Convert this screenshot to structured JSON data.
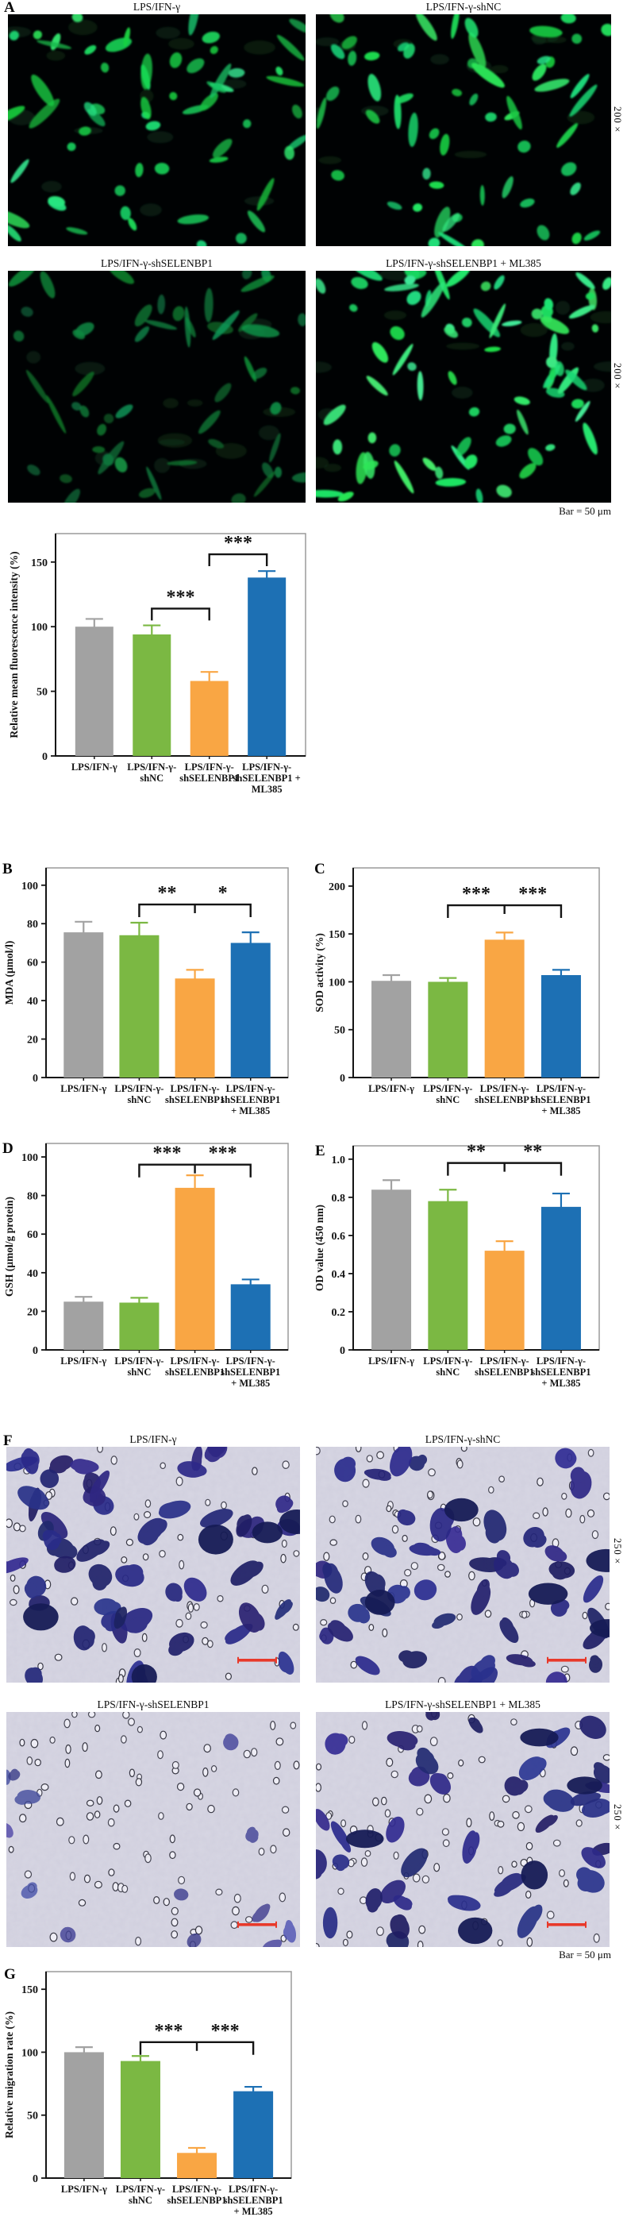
{
  "colors": {
    "bars": [
      "#a2a2a2",
      "#7bb843",
      "#f9a644",
      "#1d70b4"
    ],
    "significance": "#141414",
    "scale_bar": "#e8392a",
    "fluorescence_green": "#2bd468",
    "transwell_stain": "#2e3a92"
  },
  "panels": {
    "a": {
      "letter": "A",
      "magnification": "200×",
      "scale_note": "Bar = 50 μm",
      "images": [
        {
          "label": "LPS/IFN-γ",
          "appearance": "bright green fluorescent cells, medium density"
        },
        {
          "label": "LPS/IFN-γ-shNC",
          "appearance": "bright green fluorescent cells, medium density"
        },
        {
          "label": "LPS/IFN-γ-shSELENBP1",
          "appearance": "dim green fluorescent cells, reduced intensity"
        },
        {
          "label": "LPS/IFN-γ-shSELENBP1 + ML385",
          "appearance": "very bright green fluorescent cells, high density"
        }
      ]
    },
    "b": {
      "letter": "B"
    },
    "c": {
      "letter": "C"
    },
    "d": {
      "letter": "D"
    },
    "e": {
      "letter": "E"
    },
    "f": {
      "letter": "F",
      "magnification": "250×",
      "scale_note": "Bar = 50 μm",
      "images": [
        {
          "label": "LPS/IFN-γ",
          "appearance": "many crystal-violet stained migrated cells"
        },
        {
          "label": "LPS/IFN-γ-shNC",
          "appearance": "many crystal-violet stained migrated cells"
        },
        {
          "label": "LPS/IFN-γ-shSELENBP1",
          "appearance": "few crystal-violet stained migrated cells"
        },
        {
          "label": "LPS/IFN-γ-shSELENBP1 + ML385",
          "appearance": "moderate number of stained migrated cells"
        }
      ]
    },
    "g": {
      "letter": "G"
    }
  },
  "chart_data": [
    {
      "panel": "A",
      "type": "bar",
      "ylabel": "Relative mean fluorescence intensity (%)",
      "categories": [
        "LPS/IFN-γ",
        "LPS/IFN-γ-\nshNC",
        "LPS/IFN-γ-\nshSELENBP1",
        "LPS/IFN-γ-\nshSELENBP1 +\nML385"
      ],
      "values": [
        100,
        94,
        58,
        138
      ],
      "errors": [
        6,
        7,
        7,
        5
      ],
      "yticks": [
        "0",
        "50",
        "100",
        "150"
      ],
      "ylim": [
        0,
        172
      ],
      "sig": [
        {
          "style": "separate",
          "from": 1,
          "to": 2,
          "label": "***",
          "y": 114
        },
        {
          "style": "separate",
          "from": 2,
          "to": 3,
          "label": "***",
          "y": 156
        }
      ]
    },
    {
      "panel": "B",
      "type": "bar",
      "ylabel": "MDA (μmol/l)",
      "categories": [
        "LPS/IFN-γ",
        "LPS/IFN-γ-\nshNC",
        "LPS/IFN-γ-\nshSELENBP1",
        "LPS/IFN-γ-\nshSELENBP1\n+ ML385"
      ],
      "values": [
        75.5,
        74,
        51.5,
        70
      ],
      "errors": [
        5.5,
        6.5,
        4.5,
        5.5
      ],
      "yticks": [
        "0",
        "20",
        "40",
        "60",
        "80",
        "100"
      ],
      "ylim": [
        0,
        109
      ],
      "sig": [
        {
          "style": "combined",
          "from": 1,
          "mid": 2,
          "to": 3,
          "labels": [
            "**",
            "*"
          ],
          "y": 90
        }
      ]
    },
    {
      "panel": "C",
      "type": "bar",
      "ylabel": "SOD activity (%)",
      "categories": [
        "LPS/IFN-γ",
        "LPS/IFN-γ-\nshNC",
        "LPS/IFN-γ-\nshSELENBP1",
        "LPS/IFN-γ-\nshSELENBP1\n+ ML385"
      ],
      "values": [
        101,
        100,
        144,
        107
      ],
      "errors": [
        6,
        4,
        7.5,
        5.5
      ],
      "yticks": [
        "0",
        "50",
        "100",
        "150",
        "200"
      ],
      "ylim": [
        0,
        219
      ],
      "sig": [
        {
          "style": "combined",
          "from": 1,
          "mid": 2,
          "to": 3,
          "labels": [
            "***",
            "***"
          ],
          "y": 180
        }
      ]
    },
    {
      "panel": "D",
      "type": "bar",
      "ylabel": "GSH (μmol/g protein)",
      "categories": [
        "LPS/IFN-γ",
        "LPS/IFN-γ-\nshNC",
        "LPS/IFN-γ-\nshSELENBP1",
        "LPS/IFN-γ-\nshSELENBP1\n+ ML385"
      ],
      "values": [
        25,
        24.5,
        84,
        34
      ],
      "errors": [
        2.5,
        2.5,
        6.5,
        2.5
      ],
      "yticks": [
        "0",
        "20",
        "40",
        "60",
        "80",
        "100"
      ],
      "ylim": [
        0,
        107
      ],
      "sig": [
        {
          "style": "combined",
          "from": 1,
          "mid": 2,
          "to": 3,
          "labels": [
            "***",
            "***"
          ],
          "y": 96
        }
      ]
    },
    {
      "panel": "E",
      "type": "bar",
      "ylabel": "OD value (450 nm)",
      "categories": [
        "LPS/IFN-γ",
        "LPS/IFN-γ-\nshNC",
        "LPS/IFN-γ-\nshSELENBP1",
        "LPS/IFN-γ-\nshSELENBP1\n+ ML385"
      ],
      "values": [
        0.84,
        0.78,
        0.52,
        0.75
      ],
      "errors": [
        0.05,
        0.06,
        0.05,
        0.07
      ],
      "yticks": [
        "0",
        "0.2",
        "0.4",
        "0.6",
        "0.8",
        "1.0"
      ],
      "ylim": [
        0,
        1.07
      ],
      "sig": [
        {
          "style": "combined",
          "from": 1,
          "mid": 2,
          "to": 3,
          "labels": [
            "**",
            "**"
          ],
          "y": 0.98
        }
      ]
    },
    {
      "panel": "G",
      "type": "bar",
      "ylabel": "Relative migration rate (%)",
      "categories": [
        "LPS/IFN-γ",
        "LPS/IFN-γ-\nshNC",
        "LPS/IFN-γ-\nshSELENBP1",
        "LPS/IFN-γ-\nshSELENBP1\n+ ML385"
      ],
      "values": [
        100,
        93,
        20,
        69
      ],
      "errors": [
        4,
        4,
        4,
        3.5
      ],
      "yticks": [
        "0",
        "50",
        "100",
        "150"
      ],
      "ylim": [
        0,
        164
      ],
      "sig": [
        {
          "style": "combined",
          "from": 1,
          "mid": 2,
          "to": 3,
          "labels": [
            "***",
            "***"
          ],
          "y": 108
        }
      ]
    }
  ]
}
